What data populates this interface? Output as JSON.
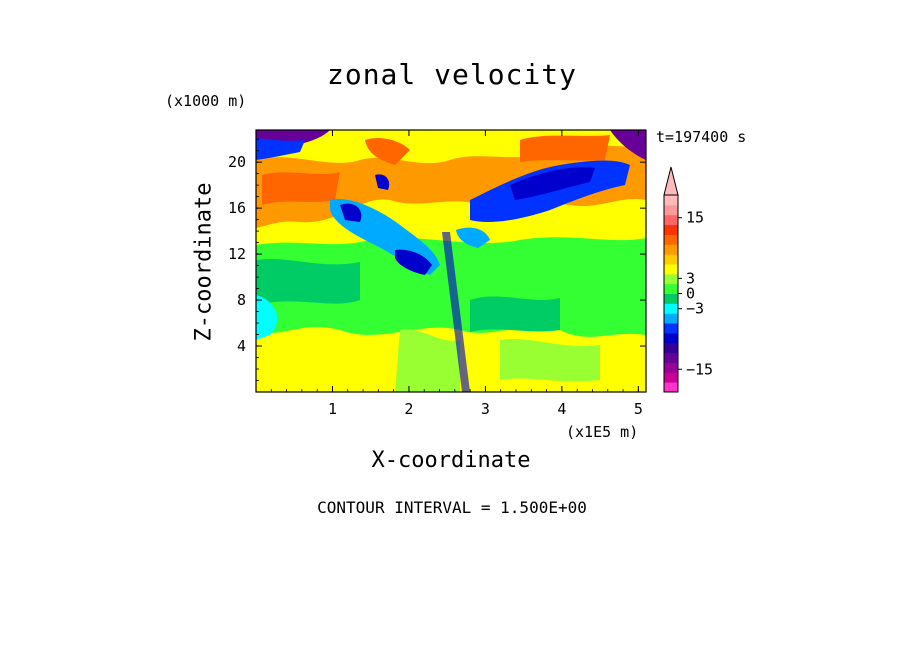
{
  "chart_data": {
    "type": "heatmap",
    "title": "zonal velocity",
    "xlabel": "X-coordinate",
    "ylabel": "Z-coordinate",
    "x_unit": "(x1E5 m)",
    "y_unit": "(x1000 m)",
    "time_label": "t=197400 s",
    "contour_interval": "CONTOUR INTERVAL = 1.500E+00",
    "xlim": [
      0,
      5.1
    ],
    "ylim": [
      0,
      22.8
    ],
    "x_ticks": [
      "1",
      "2",
      "3",
      "4",
      "5"
    ],
    "y_ticks": [
      "4",
      "8",
      "12",
      "16",
      "20"
    ],
    "colorbar": {
      "tick_labels": [
        "15",
        "3",
        "0",
        "−3",
        "−15"
      ],
      "range": [
        -19.5,
        19.5
      ],
      "colors": [
        "#ff33cc",
        "#cc0099",
        "#990099",
        "#660099",
        "#330099",
        "#0000cc",
        "#0033ff",
        "#00aaff",
        "#00ffff",
        "#00cc66",
        "#33ff33",
        "#99ff33",
        "#ffff00",
        "#ffcc00",
        "#ff9900",
        "#ff6600",
        "#ff3300",
        "#ff6666",
        "#ff9999",
        "#ffbbbb"
      ]
    },
    "regions": [
      {
        "name": "lower-yellow",
        "value": 0.5
      },
      {
        "name": "mid-green",
        "value": -1.5
      },
      {
        "name": "upper-orange",
        "value": 5
      },
      {
        "name": "upper-blue",
        "value": -6
      },
      {
        "name": "top-purple",
        "value": -10
      }
    ]
  }
}
